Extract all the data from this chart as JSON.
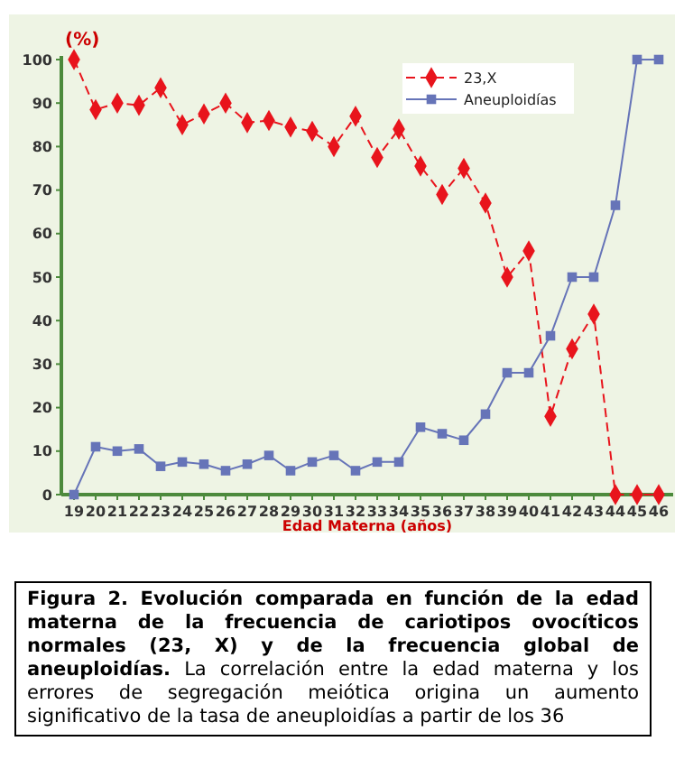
{
  "chart_data": {
    "type": "line",
    "title": "Figura 2. Evolución comparada en función de la edad materna de la frecuencia de cariotipos ovocíticos normales (23, X) y de la frecuencia global de aneuploidías.",
    "annotations": [
      "La correlación entre la edad materna y los errores de segregación meiótica origina un aumento significativo de la tasa de aneuploidías a partir de los 36"
    ],
    "xlabel": "Edad Materna (años)",
    "ylabel": "(%)",
    "categories": [
      "19",
      "20",
      "21",
      "22",
      "23",
      "24",
      "25",
      "26",
      "27",
      "28",
      "29",
      "30",
      "31",
      "32",
      "33",
      "34",
      "35",
      "36",
      "37",
      "38",
      "39",
      "40",
      "41",
      "42",
      "43",
      "44",
      "45",
      "46"
    ],
    "series": [
      {
        "name": "23,X",
        "color": "#e8141c",
        "marker": "diamond",
        "line_style": "dashed",
        "values": [
          100,
          88.5,
          90,
          89.5,
          93.5,
          85,
          87.5,
          90,
          85.5,
          86,
          84.5,
          83.5,
          80,
          87,
          77.5,
          84,
          75.5,
          69,
          75,
          67,
          50,
          56,
          18,
          33.5,
          41.5,
          0,
          0,
          0
        ]
      },
      {
        "name": "Aneuploidías",
        "color": "#6674b8",
        "marker": "square",
        "line_style": "solid",
        "values": [
          0,
          11,
          10,
          10.5,
          6.5,
          7.5,
          7,
          5.5,
          7,
          9,
          5.5,
          7.5,
          9,
          5.5,
          7.5,
          7.5,
          15.5,
          14,
          12.5,
          18.5,
          28,
          28,
          36.5,
          50,
          50,
          66.5,
          100,
          100
        ]
      }
    ],
    "ylim": [
      0,
      100
    ],
    "yticks": [
      0,
      10,
      20,
      30,
      40,
      50,
      60,
      70,
      80,
      90,
      100
    ],
    "grid": false,
    "legend": "top right"
  }
}
